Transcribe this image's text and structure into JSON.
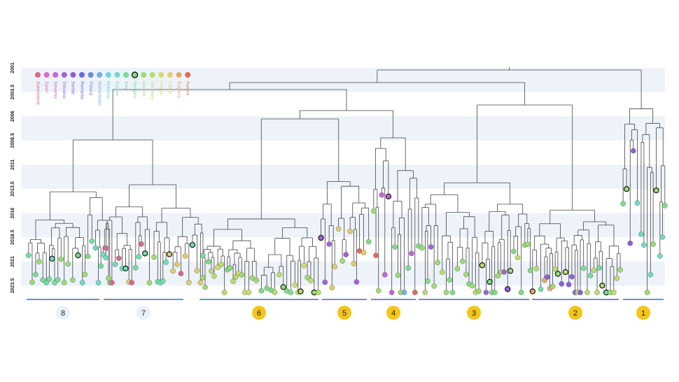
{
  "time_axis": {
    "ticks": [
      "2001",
      "2003.5",
      "2006",
      "2008.5",
      "2011",
      "2013.5",
      "2016",
      "2018.5",
      "2021",
      "2023.5"
    ]
  },
  "legend": {
    "countries": [
      {
        "name": "Switzerland",
        "color": "#d86a8e"
      },
      {
        "name": "Spain",
        "color": "#d76ec0"
      },
      {
        "name": "Slovenia",
        "color": "#c865d8"
      },
      {
        "name": "Slovakia",
        "color": "#a361da"
      },
      {
        "name": "Serbia",
        "color": "#8a5fdb"
      },
      {
        "name": "Romania",
        "color": "#6f66dd"
      },
      {
        "name": "Poland",
        "color": "#6b8de0"
      },
      {
        "name": "Netherlands",
        "color": "#6fb1e2"
      },
      {
        "name": "Moldova",
        "color": "#6fd6e0"
      },
      {
        "name": "Kosovo",
        "color": "#6fdcc4"
      },
      {
        "name": "Italy",
        "color": "#74de9e"
      },
      {
        "name": "Hungary",
        "color": "#7fdc86",
        "outlined": true
      },
      {
        "name": "Greece",
        "color": "#9ddc72"
      },
      {
        "name": "Germany",
        "color": "#b8de6e"
      },
      {
        "name": "France",
        "color": "#d2dc6c"
      },
      {
        "name": "Czech",
        "color": "#e2cc6e"
      },
      {
        "name": "Bulgaria",
        "color": "#e2a86e"
      },
      {
        "name": "Austria",
        "color": "#e06a60"
      }
    ]
  },
  "clusters": [
    {
      "label": "8",
      "style": "light"
    },
    {
      "label": "7",
      "style": "light"
    },
    {
      "label": "6",
      "style": "yellow"
    },
    {
      "label": "5",
      "style": "yellow"
    },
    {
      "label": "4",
      "style": "yellow"
    },
    {
      "label": "3",
      "style": "yellow"
    },
    {
      "label": "2",
      "style": "yellow"
    },
    {
      "label": "1",
      "style": "yellow"
    }
  ],
  "colors": {
    "band": "#eef3fa",
    "branch": "#444444",
    "cluster_bar": "#3b6fb6",
    "badge_yellow": "#f5c518",
    "badge_light": "#e9f0f8",
    "node_outline": "#1a1a1a"
  }
}
